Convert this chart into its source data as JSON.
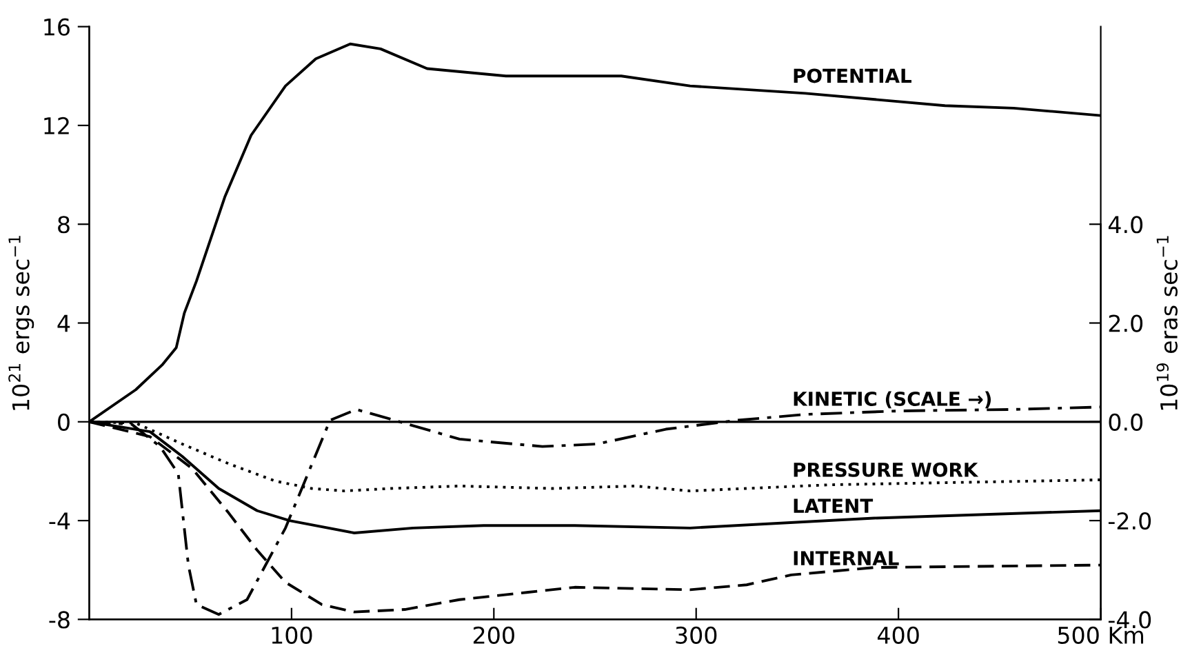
{
  "chart_data": {
    "type": "line",
    "xlabel": null,
    "ylabel": "10$^{21}$ ergs sec$^{−1}$",
    "y2label": "10$^{19}$ eras sec$^{−1}$",
    "xlim": [
      0,
      500
    ],
    "xticks": [
      100,
      200,
      300,
      400,
      {
        "value": 500,
        "label": "500 Km"
      }
    ],
    "ylim": [
      -8,
      16
    ],
    "yticks": [
      -8,
      -4,
      0,
      4,
      8,
      12,
      16
    ],
    "y2lim": [
      -4,
      8
    ],
    "y2ticks": [
      {
        "value": -4,
        "label": "-4.0"
      },
      {
        "value": -2,
        "label": "-2.0"
      },
      {
        "value": 0,
        "label": "0.0"
      },
      {
        "value": 2,
        "label": "2.0"
      },
      {
        "value": 4,
        "label": "4.0"
      }
    ],
    "grid": false,
    "legend": false,
    "marker": "none",
    "ref_lines": [
      {
        "axis": "y",
        "value": 0,
        "color": "#000000",
        "line_style": "solid"
      }
    ],
    "series": [
      {
        "name": "POTENTIAL",
        "color": "#000000",
        "line_style": "solid",
        "x": [
          0,
          23,
          36,
          43,
          47,
          53,
          67,
          80,
          97,
          112,
          129,
          144,
          167,
          206,
          242,
          263,
          297,
          354,
          423,
          457,
          500
        ],
        "values": [
          0,
          1.3,
          2.3,
          3.0,
          4.4,
          5.7,
          9.1,
          11.6,
          13.6,
          14.7,
          15.3,
          15.1,
          14.3,
          14.0,
          14.0,
          14.0,
          13.6,
          13.3,
          12.8,
          12.7,
          12.4
        ]
      },
      {
        "name": "KINETIC (SCALE →)",
        "color": "#000000",
        "line_style": "dashdot",
        "axis": "y2",
        "x": [
          0,
          21,
          35,
          44,
          49,
          53,
          64,
          78,
          97,
          119,
          132,
          151,
          183,
          224,
          251,
          285,
          320,
          354,
          400,
          457,
          500
        ],
        "values": [
          0,
          -0.05,
          -0.5,
          -1.05,
          -2.9,
          -3.7,
          -3.9,
          -3.6,
          -2.15,
          0.03,
          0.25,
          0.03,
          -0.35,
          -0.5,
          -0.45,
          -0.15,
          0.03,
          0.15,
          0.22,
          0.25,
          0.3
        ]
      },
      {
        "name": "PRESSURE WORK",
        "color": "#000000",
        "line_style": "dotted",
        "x": [
          0,
          23,
          46,
          69,
          92,
          110,
          126,
          149,
          183,
          229,
          270,
          297,
          366,
          500
        ],
        "values": [
          0,
          -0.05,
          -0.9,
          -1.7,
          -2.4,
          -2.7,
          -2.8,
          -2.7,
          -2.6,
          -2.7,
          -2.6,
          -2.8,
          -2.55,
          -2.35
        ]
      },
      {
        "name": "LATENT",
        "color": "#000000",
        "line_style": "solid",
        "x": [
          0,
          30,
          46,
          64,
          83,
          99,
          131,
          160,
          195,
          240,
          297,
          388,
          500
        ],
        "values": [
          0,
          -0.4,
          -1.4,
          -2.7,
          -3.6,
          -4.0,
          -4.5,
          -4.3,
          -4.2,
          -4.2,
          -4.3,
          -3.9,
          -3.6
        ]
      },
      {
        "name": "INTERNAL",
        "color": "#000000",
        "line_style": "dashed",
        "x": [
          0,
          30,
          51,
          69,
          83,
          97,
          115,
          131,
          156,
          183,
          217,
          240,
          297,
          325,
          347,
          388,
          500
        ],
        "values": [
          0,
          -0.6,
          -1.9,
          -3.7,
          -5.2,
          -6.5,
          -7.4,
          -7.7,
          -7.6,
          -7.2,
          -6.9,
          -6.7,
          -6.8,
          -6.6,
          -6.2,
          -5.9,
          -5.8
        ]
      }
    ]
  }
}
